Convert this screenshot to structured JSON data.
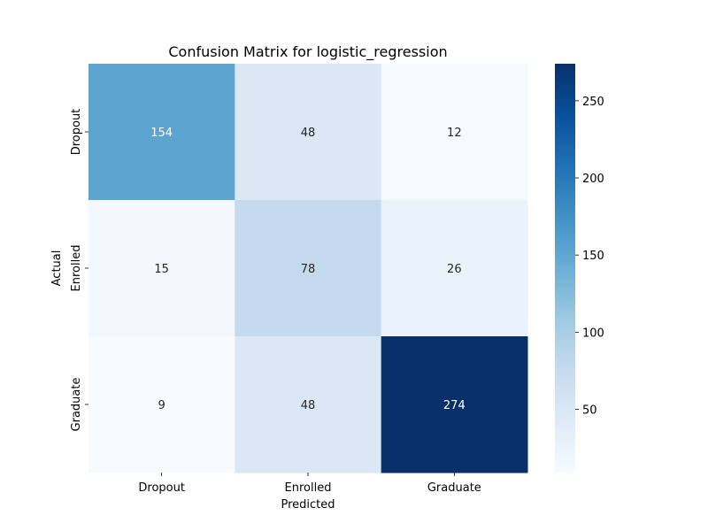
{
  "chart_data": {
    "type": "heatmap",
    "title": "Confusion Matrix for logistic_regression",
    "xlabel": "Predicted",
    "ylabel": "Actual",
    "x_categories": [
      "Dropout",
      "Enrolled",
      "Graduate"
    ],
    "y_categories": [
      "Dropout",
      "Enrolled",
      "Graduate"
    ],
    "values": [
      [
        154,
        48,
        12
      ],
      [
        15,
        78,
        26
      ],
      [
        9,
        48,
        274
      ]
    ],
    "colormap": "Blues",
    "color_range": [
      9,
      274
    ],
    "colorbar_ticks": [
      50,
      100,
      150,
      200,
      250
    ]
  }
}
